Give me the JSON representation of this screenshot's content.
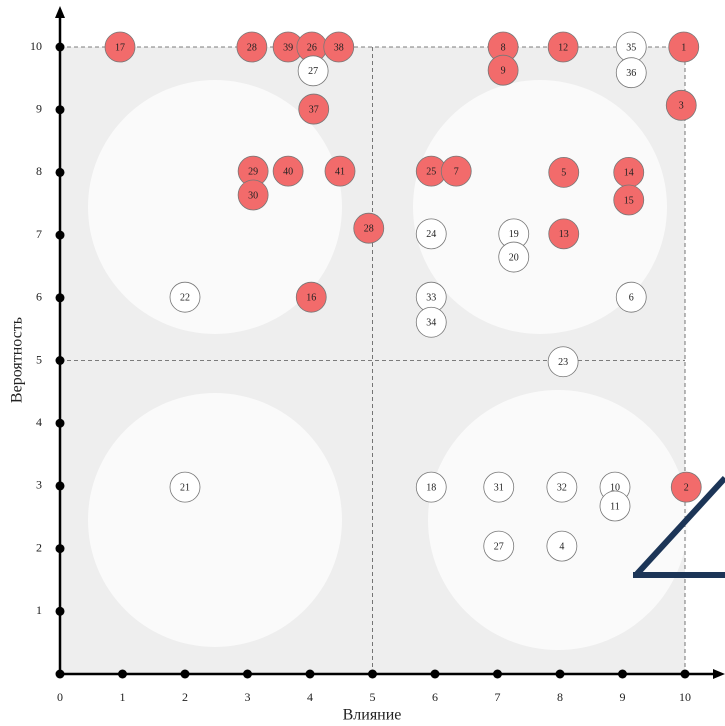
{
  "chart_data": {
    "type": "scatter",
    "x_label": "Влияние",
    "y_label": "Вероятность",
    "xlim": [
      0,
      10
    ],
    "ylim": [
      0,
      10
    ],
    "xticks": [
      0,
      1,
      2,
      3,
      4,
      5,
      6,
      7,
      8,
      9,
      10
    ],
    "yticks": [
      1,
      2,
      3,
      4,
      5,
      6,
      7,
      8,
      9,
      10
    ],
    "guides": {
      "x": [
        5,
        10
      ],
      "y": [
        5,
        10
      ]
    },
    "points": [
      {
        "label": 17,
        "x": 0.96,
        "y": 10,
        "color": "#f26b6b"
      },
      {
        "label": 28,
        "x": 3.07,
        "y": 10,
        "color": "#f26b6b"
      },
      {
        "label": 39,
        "x": 3.65,
        "y": 10,
        "color": "#f26b6b"
      },
      {
        "label": 26,
        "x": 4.03,
        "y": 10,
        "color": "#f26b6b"
      },
      {
        "label": 38,
        "x": 4.46,
        "y": 10,
        "color": "#f26b6b"
      },
      {
        "label": 27,
        "x": 4.05,
        "y": 9.62,
        "color": "#ffffff"
      },
      {
        "label": 37,
        "x": 4.06,
        "y": 9.01,
        "color": "#f26b6b"
      },
      {
        "label": 8,
        "x": 7.09,
        "y": 10,
        "color": "#f26b6b"
      },
      {
        "label": 9,
        "x": 7.09,
        "y": 9.63,
        "color": "#f26b6b"
      },
      {
        "label": 12,
        "x": 8.05,
        "y": 10,
        "color": "#f26b6b"
      },
      {
        "label": 35,
        "x": 9.14,
        "y": 10,
        "color": "#ffffff"
      },
      {
        "label": 36,
        "x": 9.14,
        "y": 9.59,
        "color": "#ffffff"
      },
      {
        "label": 1,
        "x": 9.98,
        "y": 10,
        "color": "#f26b6b"
      },
      {
        "label": 3,
        "x": 9.94,
        "y": 9.07,
        "color": "#f26b6b"
      },
      {
        "label": 29,
        "x": 3.09,
        "y": 8.02,
        "color": "#f26b6b"
      },
      {
        "label": 40,
        "x": 3.65,
        "y": 8.02,
        "color": "#f26b6b"
      },
      {
        "label": 41,
        "x": 4.48,
        "y": 8.02,
        "color": "#f26b6b"
      },
      {
        "label": 30,
        "x": 3.09,
        "y": 7.64,
        "color": "#f26b6b"
      },
      {
        "label": 25,
        "x": 5.94,
        "y": 8.02,
        "color": "#f26b6b"
      },
      {
        "label": 7,
        "x": 6.34,
        "y": 8.02,
        "color": "#f26b6b"
      },
      {
        "label": 5,
        "x": 8.06,
        "y": 8.0,
        "color": "#f26b6b"
      },
      {
        "label": 14,
        "x": 9.1,
        "y": 8.0,
        "color": "#f26b6b"
      },
      {
        "label": 15,
        "x": 9.1,
        "y": 7.56,
        "color": "#f26b6b"
      },
      {
        "label": 28,
        "x": 4.94,
        "y": 7.11,
        "color": "#f26b6b"
      },
      {
        "label": 24,
        "x": 5.94,
        "y": 7.02,
        "color": "#ffffff"
      },
      {
        "label": 19,
        "x": 7.26,
        "y": 7.02,
        "color": "#ffffff"
      },
      {
        "label": 20,
        "x": 7.26,
        "y": 6.65,
        "color": "#ffffff"
      },
      {
        "label": 13,
        "x": 8.06,
        "y": 7.02,
        "color": "#f26b6b"
      },
      {
        "label": 22,
        "x": 2.0,
        "y": 6.01,
        "color": "#ffffff"
      },
      {
        "label": 16,
        "x": 4.02,
        "y": 6.01,
        "color": "#f26b6b"
      },
      {
        "label": 33,
        "x": 5.94,
        "y": 6.01,
        "color": "#ffffff"
      },
      {
        "label": 34,
        "x": 5.94,
        "y": 5.61,
        "color": "#ffffff"
      },
      {
        "label": 6,
        "x": 9.14,
        "y": 6.01,
        "color": "#ffffff"
      },
      {
        "label": 23,
        "x": 8.05,
        "y": 4.98,
        "color": "#ffffff"
      },
      {
        "label": 21,
        "x": 2.0,
        "y": 2.98,
        "color": "#ffffff"
      },
      {
        "label": 18,
        "x": 5.94,
        "y": 2.98,
        "color": "#ffffff"
      },
      {
        "label": 31,
        "x": 7.02,
        "y": 2.98,
        "color": "#ffffff"
      },
      {
        "label": 32,
        "x": 8.03,
        "y": 2.98,
        "color": "#ffffff"
      },
      {
        "label": 10,
        "x": 8.88,
        "y": 2.98,
        "color": "#ffffff"
      },
      {
        "label": 11,
        "x": 8.88,
        "y": 2.68,
        "color": "#ffffff"
      },
      {
        "label": 2,
        "x": 10.02,
        "y": 2.98,
        "color": "#f26b6b"
      },
      {
        "label": 27,
        "x": 7.02,
        "y": 2.04,
        "color": "#ffffff"
      },
      {
        "label": 4,
        "x": 8.03,
        "y": 2.04,
        "color": "#ffffff"
      }
    ]
  }
}
